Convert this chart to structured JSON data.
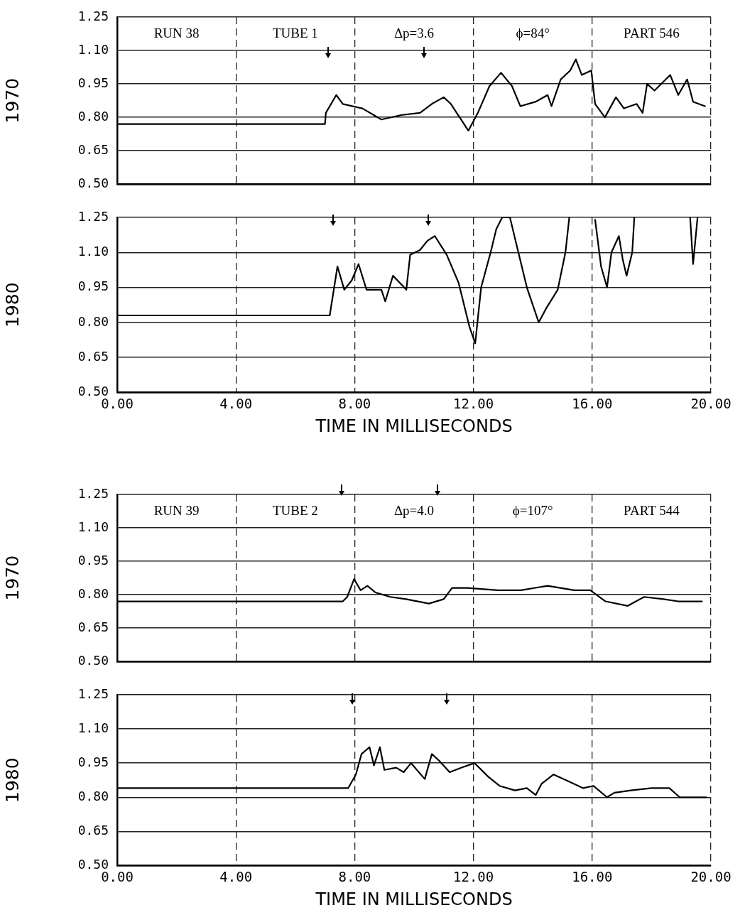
{
  "chart_data": [
    {
      "type": "line",
      "ylabel": "1970",
      "tick_labels": "y",
      "grid": true,
      "marker": "none",
      "color": "#000000",
      "xlim": [
        0,
        20
      ],
      "xticks": [
        0,
        4,
        8,
        12,
        16,
        20
      ],
      "ylim": [
        0.5,
        1.25
      ],
      "yticks": [
        {
          "value": 0.5,
          "label": "0.50"
        },
        {
          "value": 0.65,
          "label": "0.65"
        },
        {
          "value": 0.8,
          "label": "0.80"
        },
        {
          "value": 0.95,
          "label": "0.95"
        },
        {
          "value": 1.1,
          "label": "1.10"
        },
        {
          "value": 1.25,
          "label": "1.25"
        }
      ],
      "x": [
        0,
        1,
        2,
        3,
        4,
        5,
        6,
        7.0,
        7.03,
        7.38,
        7.6,
        8.26,
        8.9,
        9.56,
        10.2,
        10.6,
        11.0,
        11.24,
        11.83,
        12.15,
        12.54,
        12.93,
        13.3,
        13.58,
        14.1,
        14.5,
        14.63,
        14.94,
        15.26,
        15.45,
        15.65,
        15.97,
        16.1,
        16.43,
        16.8,
        17.07,
        17.5,
        17.7,
        17.85,
        18.1,
        18.63,
        18.9,
        19.2,
        19.4,
        19.8
      ],
      "values": [
        0.77,
        0.77,
        0.77,
        0.77,
        0.77,
        0.77,
        0.77,
        0.77,
        0.82,
        0.9,
        0.86,
        0.84,
        0.79,
        0.81,
        0.82,
        0.86,
        0.89,
        0.86,
        0.74,
        0.82,
        0.94,
        1.0,
        0.94,
        0.85,
        0.87,
        0.9,
        0.85,
        0.97,
        1.01,
        1.06,
        0.99,
        1.01,
        0.86,
        0.8,
        0.89,
        0.84,
        0.86,
        0.82,
        0.95,
        0.92,
        0.99,
        0.9,
        0.97,
        0.87,
        0.85
      ],
      "annotations": [
        "RUN 38",
        "TUBE 1",
        "Δp=3.6",
        "ϕ=84°",
        "PART 546"
      ]
    },
    {
      "type": "line",
      "ylabel": "1980",
      "xlabel": "TIME IN MILLISECONDS",
      "grid": true,
      "marker": "none",
      "color": "#000000",
      "xlim": [
        0,
        20
      ],
      "xticks": [
        {
          "value": 0,
          "label": "0.00"
        },
        {
          "value": 4,
          "label": "4.00"
        },
        {
          "value": 8,
          "label": "8.00"
        },
        {
          "value": 12,
          "label": "12.00"
        },
        {
          "value": 16,
          "label": "16.00"
        },
        {
          "value": 20,
          "label": "20.00"
        }
      ],
      "ylim": [
        0.5,
        1.25
      ],
      "yticks": [
        {
          "value": 0.5,
          "label": "0.50"
        },
        {
          "value": 0.65,
          "label": "0.65"
        },
        {
          "value": 0.8,
          "label": "0.80"
        },
        {
          "value": 0.95,
          "label": "0.95"
        },
        {
          "value": 1.1,
          "label": "1.10"
        },
        {
          "value": 1.25,
          "label": "1.25"
        }
      ],
      "x": [
        0,
        1,
        2,
        3,
        4,
        5,
        6,
        7.16,
        7.42,
        7.65,
        7.9,
        8.13,
        8.4,
        8.9,
        9.03,
        9.29,
        9.74,
        9.87,
        10.2,
        10.45,
        10.7,
        11.1,
        11.5,
        11.87,
        12.06,
        12.26,
        12.58,
        12.77,
        12.97,
        13.23,
        13.4,
        13.8,
        14.2,
        14.45,
        14.84,
        15.1,
        15.23,
        15.7,
        16.1,
        16.3,
        16.5,
        16.65,
        16.9,
        17.03,
        17.16,
        17.35,
        17.42,
        18.5,
        19.3,
        19.4,
        19.55
      ],
      "values": [
        0.83,
        0.83,
        0.83,
        0.83,
        0.83,
        0.83,
        0.83,
        0.83,
        1.04,
        0.94,
        0.98,
        1.05,
        0.94,
        0.94,
        0.89,
        1.0,
        0.94,
        1.09,
        1.11,
        1.15,
        1.17,
        1.09,
        0.97,
        0.78,
        0.71,
        0.95,
        1.1,
        1.2,
        1.25,
        1.25,
        1.16,
        0.95,
        0.8,
        0.86,
        0.94,
        1.1,
        1.25,
        null,
        1.24,
        1.04,
        0.95,
        1.1,
        1.17,
        1.07,
        1.0,
        1.1,
        1.25,
        null,
        1.25,
        1.05,
        1.25
      ]
    },
    {
      "type": "line",
      "ylabel": "1970",
      "tick_labels": "y",
      "grid": true,
      "marker": "none",
      "color": "#000000",
      "xlim": [
        0,
        20
      ],
      "xticks": [
        0,
        4,
        8,
        12,
        16,
        20
      ],
      "ylim": [
        0.5,
        1.25
      ],
      "yticks": [
        {
          "value": 0.5,
          "label": "0.50"
        },
        {
          "value": 0.65,
          "label": "0.65"
        },
        {
          "value": 0.8,
          "label": "0.80"
        },
        {
          "value": 0.95,
          "label": "0.95"
        },
        {
          "value": 1.1,
          "label": "1.10"
        },
        {
          "value": 1.25,
          "label": "1.25"
        }
      ],
      "x": [
        0,
        1,
        2,
        3,
        4,
        5,
        6,
        7,
        7.6,
        7.75,
        7.98,
        8.2,
        8.43,
        8.7,
        9.2,
        9.73,
        10.5,
        11.0,
        11.28,
        11.8,
        12.83,
        13.6,
        14.5,
        15.4,
        15.94,
        16.45,
        17.2,
        17.75,
        18.4,
        18.9,
        19.7
      ],
      "values": [
        0.77,
        0.77,
        0.77,
        0.77,
        0.77,
        0.77,
        0.77,
        0.77,
        0.77,
        0.79,
        0.87,
        0.82,
        0.84,
        0.81,
        0.79,
        0.78,
        0.76,
        0.78,
        0.83,
        0.83,
        0.82,
        0.82,
        0.84,
        0.82,
        0.82,
        0.77,
        0.75,
        0.79,
        0.78,
        0.77,
        0.77
      ],
      "annotations": [
        "RUN 39",
        "TUBE 2",
        "Δp=4.0",
        "ϕ=107°",
        "PART 544"
      ]
    },
    {
      "type": "line",
      "ylabel": "1980",
      "xlabel": "TIME IN MILLISECONDS",
      "grid": true,
      "marker": "none",
      "color": "#000000",
      "xlim": [
        0,
        20
      ],
      "xticks": [
        {
          "value": 0,
          "label": "0.00"
        },
        {
          "value": 4,
          "label": "4.00"
        },
        {
          "value": 8,
          "label": "8.00"
        },
        {
          "value": 12,
          "label": "12.00"
        },
        {
          "value": 16,
          "label": "16.00"
        },
        {
          "value": 20,
          "label": "20.00"
        }
      ],
      "ylim": [
        0.5,
        1.25
      ],
      "yticks": [
        {
          "value": 0.5,
          "label": "0.50"
        },
        {
          "value": 0.65,
          "label": "0.65"
        },
        {
          "value": 0.8,
          "label": "0.80"
        },
        {
          "value": 0.95,
          "label": "0.95"
        },
        {
          "value": 1.1,
          "label": "1.10"
        },
        {
          "value": 1.25,
          "label": "1.25"
        }
      ],
      "x": [
        0,
        1,
        2,
        3,
        4,
        5,
        6,
        7,
        7.78,
        8.04,
        8.23,
        8.5,
        8.65,
        8.85,
        9.0,
        9.4,
        9.65,
        9.9,
        10.36,
        10.6,
        10.85,
        11.2,
        11.6,
        12.04,
        12.5,
        12.88,
        13.4,
        13.8,
        14.1,
        14.3,
        14.7,
        15.2,
        15.7,
        16.04,
        16.5,
        16.75,
        17.3,
        18.0,
        18.6,
        18.95,
        19.33,
        19.85
      ],
      "values": [
        0.84,
        0.84,
        0.84,
        0.84,
        0.84,
        0.84,
        0.84,
        0.84,
        0.84,
        0.9,
        0.99,
        1.02,
        0.94,
        1.02,
        0.92,
        0.93,
        0.91,
        0.95,
        0.88,
        0.99,
        0.96,
        0.91,
        0.93,
        0.95,
        0.89,
        0.85,
        0.83,
        0.84,
        0.81,
        0.86,
        0.9,
        0.87,
        0.84,
        0.85,
        0.8,
        0.82,
        0.83,
        0.84,
        0.84,
        0.8,
        0.8,
        0.8
      ]
    }
  ]
}
